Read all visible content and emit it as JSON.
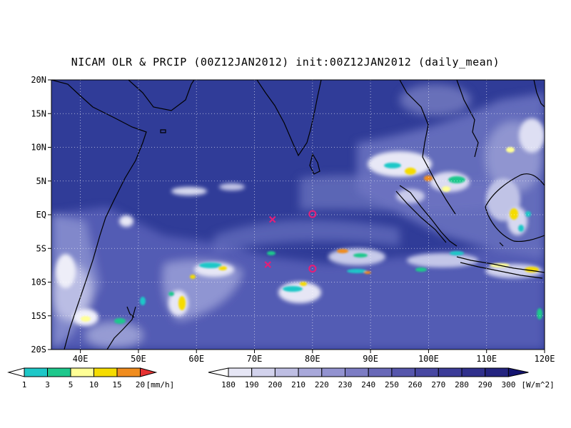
{
  "title": "NICAM OLR & PRCIP (00Z12JAN2012) init:00Z12JAN2012 (daily_mean)",
  "map": {
    "lon_range": [
      35,
      120
    ],
    "lat_range": [
      -20,
      20
    ],
    "lat_ticks": [
      {
        "value": 20,
        "label": "20N"
      },
      {
        "value": 15,
        "label": "15N"
      },
      {
        "value": 10,
        "label": "10N"
      },
      {
        "value": 5,
        "label": "5N"
      },
      {
        "value": 0,
        "label": "EQ"
      },
      {
        "value": -5,
        "label": "5S"
      },
      {
        "value": -10,
        "label": "10S"
      },
      {
        "value": -15,
        "label": "15S"
      },
      {
        "value": -20,
        "label": "20S"
      }
    ],
    "lon_ticks": [
      {
        "value": 40,
        "label": "40E"
      },
      {
        "value": 50,
        "label": "50E"
      },
      {
        "value": 60,
        "label": "60E"
      },
      {
        "value": 70,
        "label": "70E"
      },
      {
        "value": 80,
        "label": "80E"
      },
      {
        "value": 90,
        "label": "90E"
      },
      {
        "value": 100,
        "label": "100E"
      },
      {
        "value": 110,
        "label": "110E"
      },
      {
        "value": 120,
        "label": "120E"
      }
    ],
    "grid": "dotted",
    "background_color": "#303c98",
    "markers": [
      {
        "type": "x",
        "lon": 73.1,
        "lat": -0.7,
        "color": "#e0207a"
      },
      {
        "type": "x",
        "lon": 72.3,
        "lat": -7.4,
        "color": "#e0207a"
      },
      {
        "type": "o",
        "lon": 80.0,
        "lat": 0.1,
        "color": "#e0207a"
      },
      {
        "type": "o",
        "lon": 80.0,
        "lat": -8.0,
        "color": "#e0207a"
      }
    ]
  },
  "precip_colorbar": {
    "levels": [
      "1",
      "3",
      "5",
      "10",
      "15",
      "20"
    ],
    "units": "[mm/h]",
    "colors": [
      "#ffffff",
      "#1ec8c8",
      "#1ec88c",
      "#ffff96",
      "#f5dc00",
      "#f08c1e",
      "#e63232"
    ]
  },
  "olr_colorbar": {
    "levels": [
      "180",
      "190",
      "200",
      "210",
      "220",
      "230",
      "240",
      "250",
      "260",
      "270",
      "280",
      "290",
      "300"
    ],
    "units": "[W/m^2]",
    "colors": [
      "#ffffff",
      "#e6e6f5",
      "#d2d2ec",
      "#bebee3",
      "#a8a8da",
      "#9292d0",
      "#7c7cc4",
      "#6868b8",
      "#5656ac",
      "#4848a2",
      "#3c3c98",
      "#30308c",
      "#242480",
      "#141470"
    ]
  }
}
